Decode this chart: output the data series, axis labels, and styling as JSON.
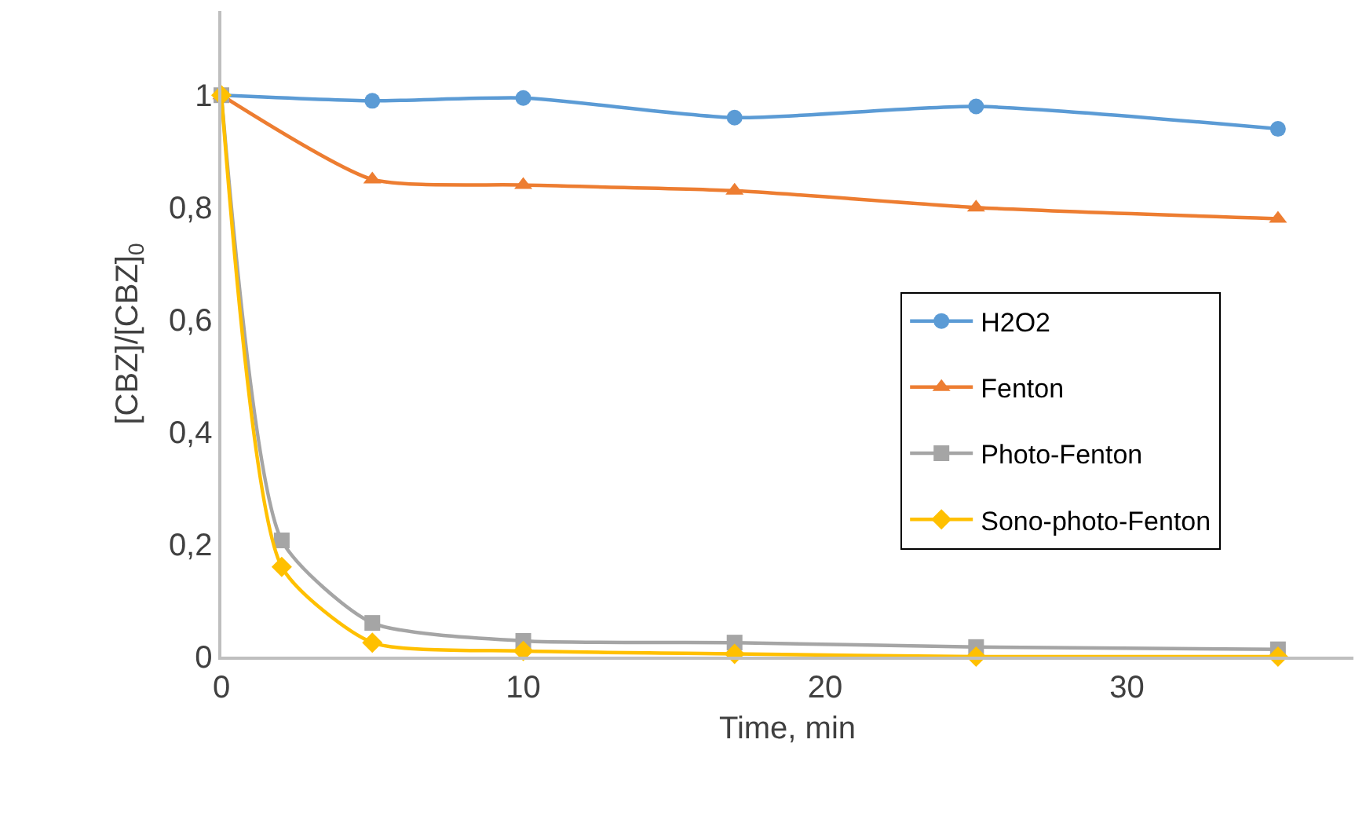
{
  "chart_data": {
    "type": "line",
    "xlabel": "Time, min",
    "ylabel": "[CBZ]/[CBZ]$_{0}$",
    "xlim": [
      0,
      37.5
    ],
    "xticks": [
      0,
      10,
      20,
      30
    ],
    "ylim": [
      0,
      1.15
    ],
    "yticks": [
      0,
      {
        "value": 0.2,
        "label": "0,2"
      },
      {
        "value": 0.4,
        "label": "0,4"
      },
      {
        "value": 0.6,
        "label": "0,6"
      },
      {
        "value": 0.8,
        "label": "0,8"
      },
      1
    ],
    "grid": false,
    "legend": "right",
    "series": [
      {
        "name": "H2O2",
        "color": "#5b9bd5",
        "marker": "circle",
        "x": [
          0,
          5,
          10,
          17,
          25,
          35
        ],
        "values": [
          1,
          0.99,
          0.995,
          0.96,
          0.98,
          0.94
        ]
      },
      {
        "name": "Fenton",
        "color": "#ed7d31",
        "marker": "triangle",
        "x": [
          0,
          5,
          10,
          17,
          25,
          35
        ],
        "values": [
          1,
          0.85,
          0.84,
          0.83,
          0.8,
          0.78
        ]
      },
      {
        "name": "Photo-Fenton",
        "color": "#a5a5a5",
        "marker": "square",
        "x": [
          0,
          2,
          5,
          10,
          17,
          25,
          35
        ],
        "values": [
          1,
          0.207,
          0.06,
          0.028,
          0.025,
          0.017,
          0.013
        ]
      },
      {
        "name": "Sono-photo-Fenton",
        "color": "#ffc000",
        "marker": "diamond",
        "x": [
          0,
          2,
          5,
          10,
          17,
          25,
          35
        ],
        "values": [
          1,
          0.16,
          0.025,
          0.01,
          0.005,
          0,
          0
        ]
      }
    ]
  }
}
